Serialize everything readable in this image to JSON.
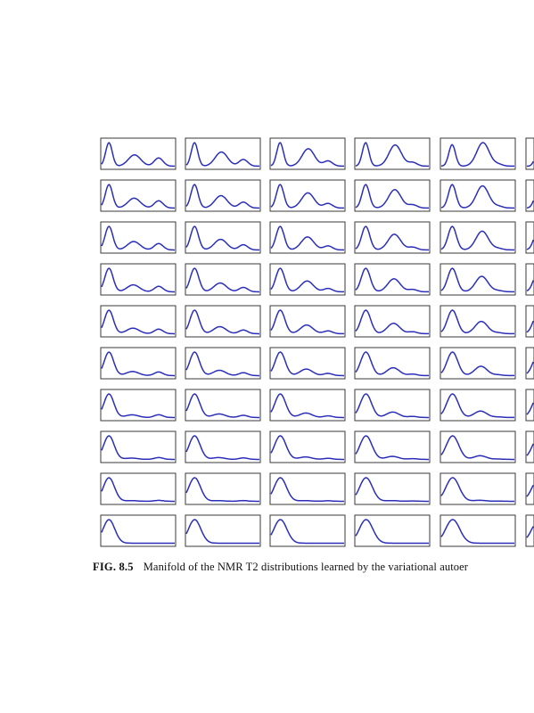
{
  "figure": {
    "rows": 10,
    "cols_visible": 6,
    "curve_color": "#2b2fb8",
    "frame_color": "#3a3a3a"
  },
  "caption": {
    "label": "FIG. 8.5",
    "text": "Manifold of the NMR T2 distributions learned by the variational autoer"
  }
}
